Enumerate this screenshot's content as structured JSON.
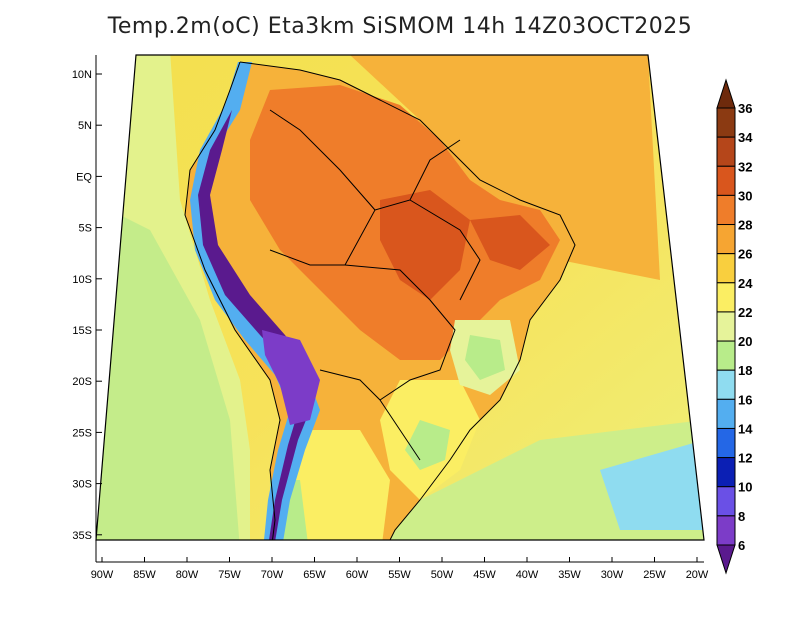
{
  "title": "Temp.2m(oC) Eta3km SiSMOM 14h 14Z03OCT2025",
  "y_ticks": [
    "10N",
    "5N",
    "EQ",
    "5S",
    "10S",
    "15S",
    "20S",
    "25S",
    "30S",
    "35S"
  ],
  "x_ticks": [
    "90W",
    "85W",
    "80W",
    "75W",
    "70W",
    "65W",
    "60W",
    "55W",
    "50W",
    "45W",
    "40W",
    "35W",
    "30W",
    "25W",
    "20W"
  ],
  "colorbar": {
    "labels": [
      "36",
      "34",
      "32",
      "30",
      "28",
      "26",
      "24",
      "22",
      "20",
      "18",
      "16",
      "14",
      "12",
      "10",
      "8",
      "6"
    ],
    "colors": [
      "#6e2a0c",
      "#8b3a12",
      "#b5461a",
      "#d9561d",
      "#ef7d2a",
      "#f6a532",
      "#f9cf3e",
      "#fbee63",
      "#e6f39a",
      "#b8ec8a",
      "#8fdcf0",
      "#53aef0",
      "#2467e6",
      "#0b1fb4",
      "#6a50e6",
      "#7c3cc8",
      "#5a1a8e"
    ]
  }
}
